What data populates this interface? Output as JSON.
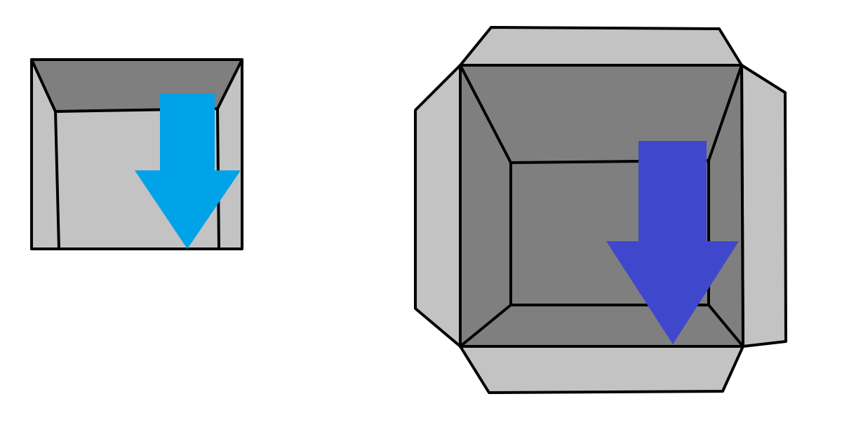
{
  "colors": {
    "background": "#ffffff",
    "outline": "#000000",
    "light_gray": "#c3c3c3",
    "dark_gray": "#7f7f7f",
    "small_arrow": "#00a2e8",
    "large_arrow": "#3f48cc"
  },
  "figures": [
    {
      "name": "small-box-front-view",
      "arrow_direction": "down"
    },
    {
      "name": "open-box-top-view",
      "arrow_direction": "down"
    }
  ]
}
